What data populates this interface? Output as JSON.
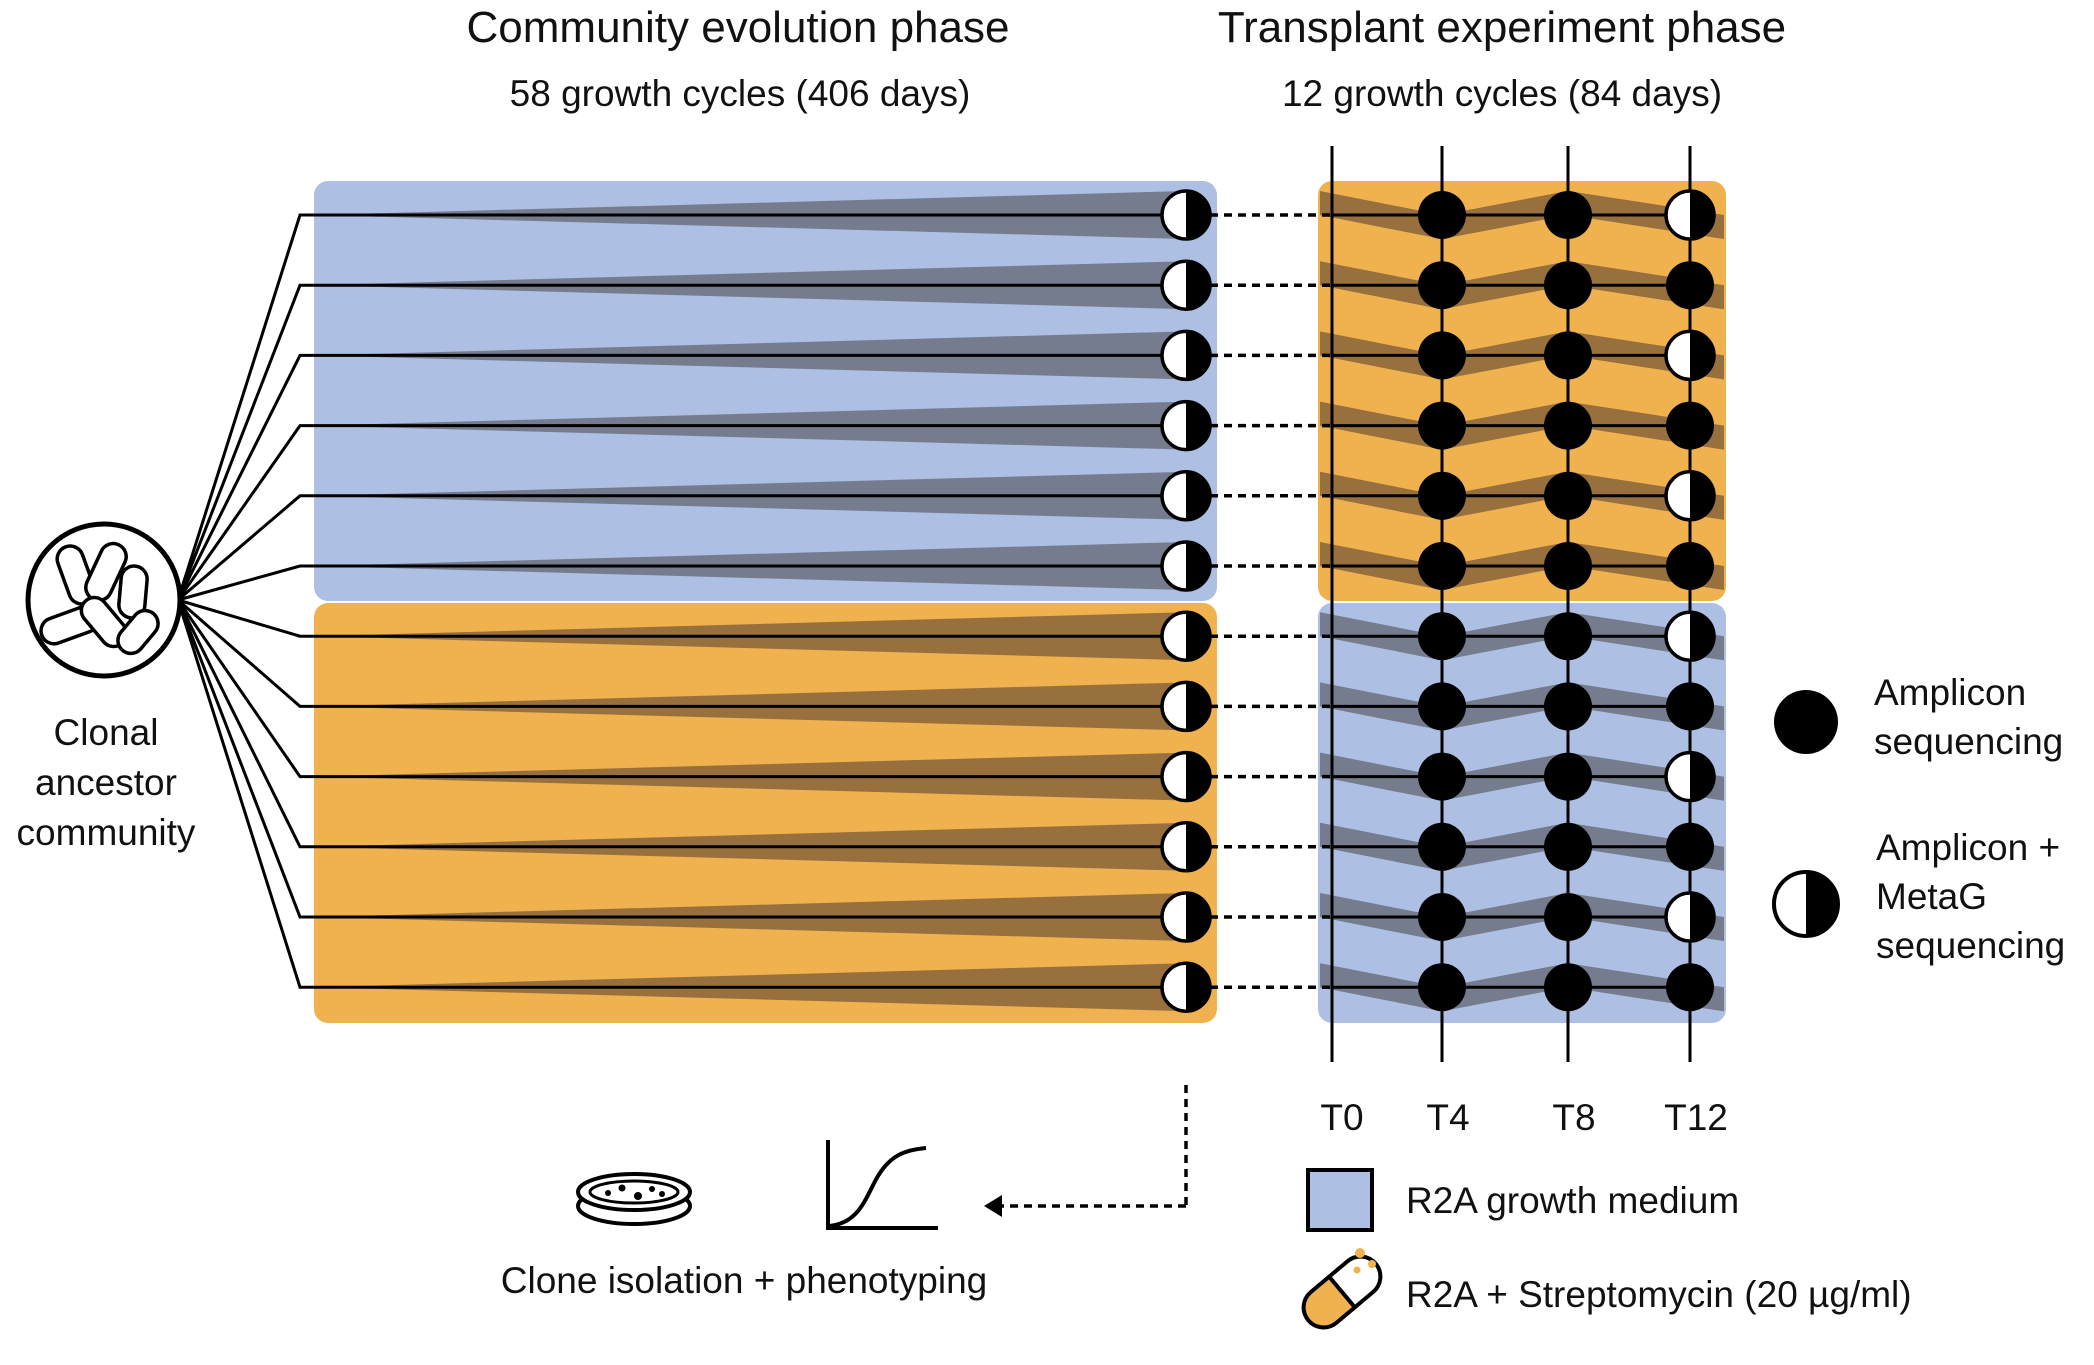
{
  "titles": {
    "evolution": "Community evolution phase",
    "evolution_sub": "58 growth cycles (406 days)",
    "transplant": "Transplant experiment phase",
    "transplant_sub": "12 growth cycles (84 days)"
  },
  "ancestor": {
    "line1": "Clonal",
    "line2": "ancestor",
    "line3": "community"
  },
  "timepoints": [
    "T0",
    "T4",
    "T8",
    "T12"
  ],
  "legend": {
    "amplicon_1": "Amplicon",
    "amplicon_2": "sequencing",
    "metag_1": "Amplicon +",
    "metag_2": "MetaG",
    "metag_3": "sequencing",
    "r2a": "R2A growth medium",
    "strep": "R2A + Streptomycin (20 µg/ml)"
  },
  "clone": {
    "label": "Clone isolation + phenotyping"
  },
  "colors": {
    "r2a_blue": "#adbfe2",
    "strep_orange": "#f0b24e",
    "wedge_on_blue": "#757c8e",
    "wedge_on_orange": "#98703e",
    "line": "#000000"
  },
  "lineages": {
    "evolution_medium": [
      "r2a",
      "r2a",
      "r2a",
      "r2a",
      "r2a",
      "r2a",
      "strep",
      "strep",
      "strep",
      "strep",
      "strep",
      "strep"
    ],
    "transplant_medium": [
      "strep",
      "strep",
      "strep",
      "strep",
      "strep",
      "strep",
      "r2a",
      "r2a",
      "r2a",
      "r2a",
      "r2a",
      "r2a"
    ],
    "sampling": [
      [
        "amplicon",
        "amplicon",
        "metag"
      ],
      [
        "amplicon",
        "amplicon",
        "amplicon"
      ],
      [
        "amplicon",
        "amplicon",
        "metag"
      ],
      [
        "amplicon",
        "amplicon",
        "amplicon"
      ],
      [
        "amplicon",
        "amplicon",
        "metag"
      ],
      [
        "amplicon",
        "amplicon",
        "amplicon"
      ],
      [
        "amplicon",
        "amplicon",
        "metag"
      ],
      [
        "amplicon",
        "amplicon",
        "amplicon"
      ],
      [
        "amplicon",
        "amplicon",
        "metag"
      ],
      [
        "amplicon",
        "amplicon",
        "amplicon"
      ],
      [
        "amplicon",
        "amplicon",
        "metag"
      ],
      [
        "amplicon",
        "amplicon",
        "amplicon"
      ]
    ]
  }
}
